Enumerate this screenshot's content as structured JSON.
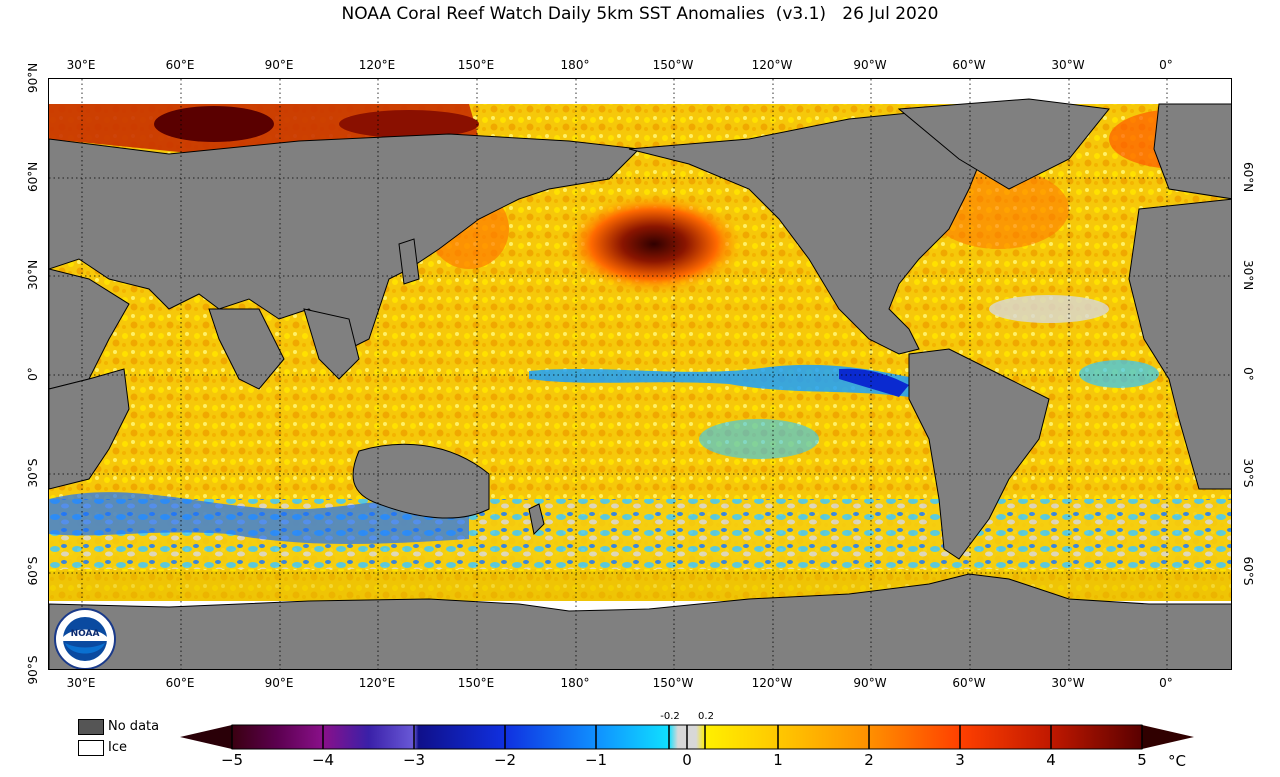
{
  "title": "NOAA Coral Reef Watch Daily 5km SST Anomalies  (v3.1)   26 Jul 2020",
  "map": {
    "projection": "equirectangular",
    "center_longitude": "~180°",
    "longitude_labels": [
      "30°E",
      "60°E",
      "90°E",
      "120°E",
      "150°E",
      "180°",
      "150°W",
      "120°W",
      "90°W",
      "60°W",
      "30°W",
      "0°"
    ],
    "latitude_labels_left": [
      "90°N",
      "60°N",
      "30°N",
      "0°",
      "30°S",
      "60°S",
      "90°S"
    ],
    "latitude_labels_right": [
      "60°N",
      "30°N",
      "0°",
      "30°S",
      "60°S"
    ],
    "colors": {
      "land": "#808080",
      "ice": "#ffffff",
      "ocean_neutral": "#f5d000"
    },
    "logo": "NOAA"
  },
  "legend": {
    "no_data_label": "No data",
    "no_data_color": "#555555",
    "ice_label": "Ice",
    "ice_color": "#ffffff"
  },
  "colorbar": {
    "ticks": [
      "−5",
      "−4",
      "−3",
      "−2",
      "−1",
      "0",
      "1",
      "2",
      "3",
      "4",
      "5"
    ],
    "small_ticks": [
      "-0.2",
      "0.2"
    ],
    "unit": "°C",
    "range": [
      -5,
      5
    ],
    "colors": [
      "#2a0008",
      "#5c0050",
      "#8a0a8a",
      "#3a1aa0",
      "#5a4ad0",
      "#10108a",
      "#1030e0",
      "#1080ff",
      "#10b0ff",
      "#10e0ff",
      "#d8d8d8",
      "#fff000",
      "#ffc000",
      "#ff8000",
      "#ff3000",
      "#c01000",
      "#600000"
    ]
  }
}
